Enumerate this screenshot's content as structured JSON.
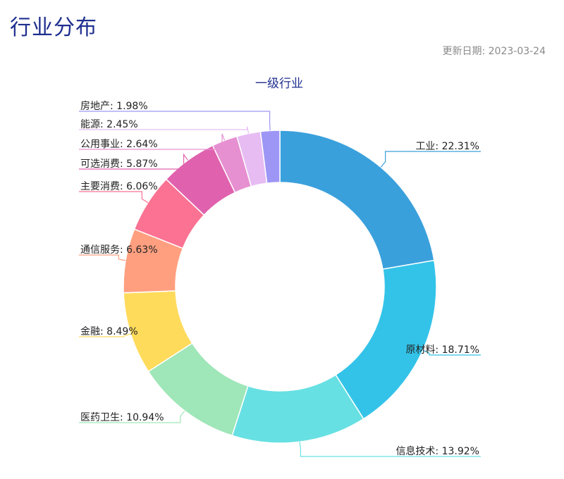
{
  "page": {
    "title": "行业分布",
    "update_date": "更新日期: 2023-03-24"
  },
  "chart_data": {
    "type": "pie",
    "title": "一级行业",
    "donut": true,
    "categories": [
      "工业",
      "原材料",
      "信息技术",
      "医药卫生",
      "金融",
      "通信服务",
      "主要消费",
      "可选消费",
      "公用事业",
      "能源",
      "房地产"
    ],
    "values": [
      22.31,
      18.71,
      13.92,
      10.94,
      8.49,
      6.63,
      6.06,
      5.87,
      2.64,
      2.45,
      1.98
    ],
    "labels": [
      "工业: 22.31%",
      "原材料: 18.71%",
      "信息技术: 13.92%",
      "医药卫生: 10.94%",
      "金融: 8.49%",
      "通信服务: 6.63%",
      "主要消费: 6.06%",
      "可选消费: 5.87%",
      "公用事业: 2.64%",
      "能源: 2.45%",
      "房地产: 1.98%"
    ],
    "colors": [
      "#3aa0dc",
      "#33c3e8",
      "#67e0e3",
      "#9fe6b8",
      "#ffdb5c",
      "#ff9f7f",
      "#fb7293",
      "#e062ae",
      "#e690d1",
      "#e7bcf3",
      "#9d96f5"
    ],
    "legend": "none"
  }
}
